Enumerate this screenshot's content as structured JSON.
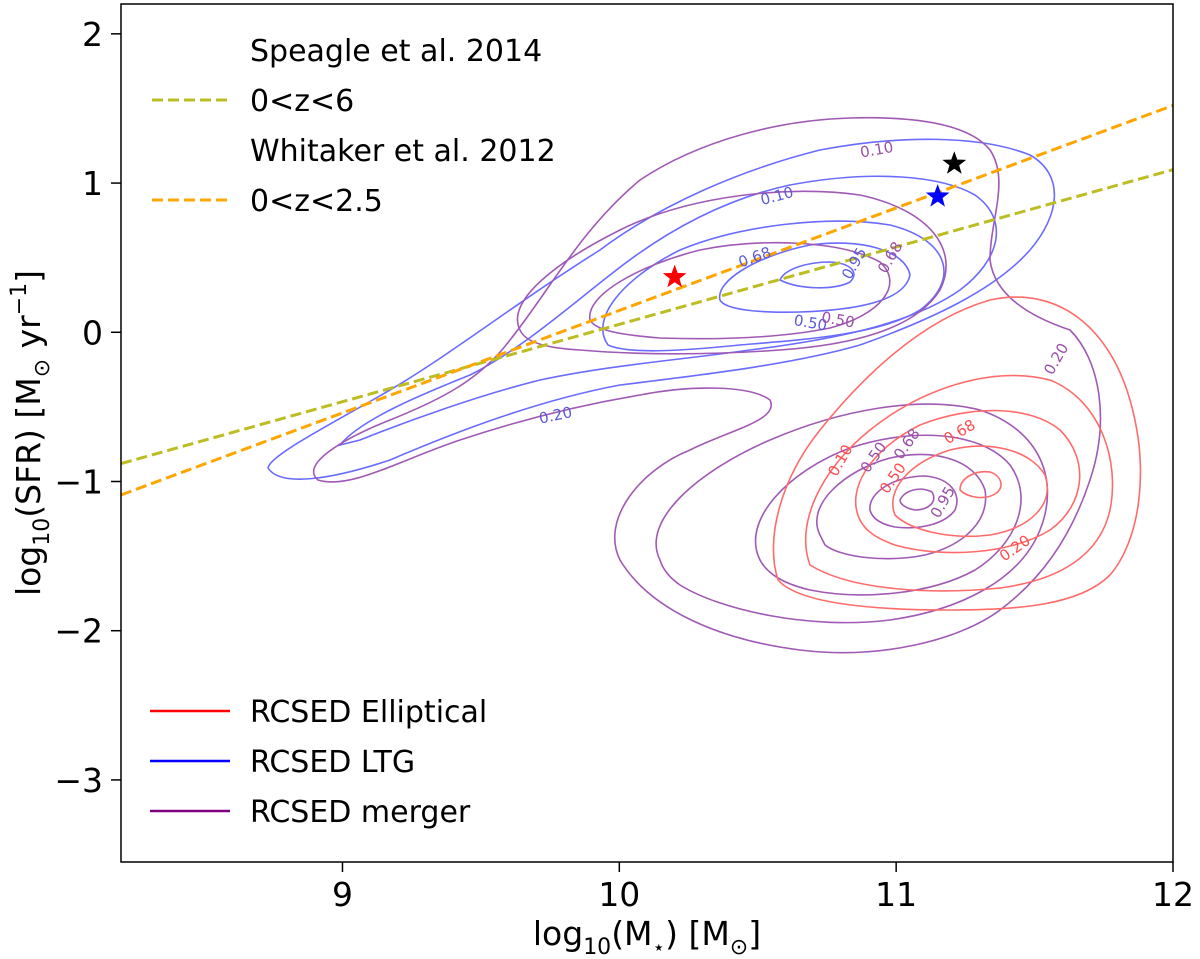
{
  "chart_data": {
    "type": "contour",
    "xlabel_main": "log",
    "xlabel_sub": "10",
    "xlabel_rest": "(M",
    "xlabel_star": "⋆",
    "xlabel_close": ") [M",
    "xlabel_sun": "⊙",
    "xlabel_end": "]",
    "ylabel_main": "log",
    "ylabel_sub": "10",
    "ylabel_rest": "(SFR) [M",
    "ylabel_sun": "⊙",
    "ylabel_unit": " yr",
    "ylabel_exp": "−1",
    "ylabel_end": "]",
    "xlim": [
      8.2,
      12.0
    ],
    "ylim": [
      -3.55,
      2.2
    ],
    "xticks": [
      {
        "value": 9,
        "label": "9"
      },
      {
        "value": 10,
        "label": "10"
      },
      {
        "value": 11,
        "label": "11"
      },
      {
        "value": 12,
        "label": "12"
      }
    ],
    "yticks": [
      {
        "value": 2,
        "label": "2"
      },
      {
        "value": 1,
        "label": "1"
      },
      {
        "value": 0,
        "label": "0"
      },
      {
        "value": -1,
        "label": "−1"
      },
      {
        "value": -2,
        "label": "−2"
      },
      {
        "value": -3,
        "label": "−3"
      }
    ],
    "lines": [
      {
        "name": "0<z<6",
        "color": "#bcbd22",
        "x": [
          8.2,
          12.0
        ],
        "y": [
          -0.88,
          1.09
        ],
        "style": "dashed"
      },
      {
        "name": "0<z<2.5",
        "color": "#ffa500",
        "x": [
          8.2,
          12.0
        ],
        "y": [
          -1.09,
          1.52
        ],
        "style": "dashed"
      }
    ],
    "stars": [
      {
        "name": "red-star",
        "color": "#ff0000",
        "x": 10.2,
        "y": 0.37
      },
      {
        "name": "blue-star",
        "color": "#0000ff",
        "x": 11.15,
        "y": 0.91
      },
      {
        "name": "black-star",
        "color": "#000000",
        "x": 11.21,
        "y": 1.13
      }
    ],
    "contour_labels": [
      {
        "text": "0.10",
        "x": 10.57,
        "y": 0.91,
        "color": "#5b5bd6",
        "angle": -15
      },
      {
        "text": "0.10",
        "x": 10.93,
        "y": 1.22,
        "color": "#9a4fa8",
        "angle": -10
      },
      {
        "text": "0.68",
        "x": 10.49,
        "y": 0.5,
        "color": "#5b5bd6",
        "angle": -20
      },
      {
        "text": "0.95",
        "x": 10.85,
        "y": 0.46,
        "color": "#5b5bd6",
        "angle": -60
      },
      {
        "text": "0.68",
        "x": 10.98,
        "y": 0.5,
        "color": "#9a4fa8",
        "angle": -60
      },
      {
        "text": "0.50",
        "x": 10.69,
        "y": 0.06,
        "color": "#5b5bd6",
        "angle": 10
      },
      {
        "text": "0.50",
        "x": 10.79,
        "y": 0.08,
        "color": "#9a4fa8",
        "angle": 10
      },
      {
        "text": "0.20",
        "x": 9.77,
        "y": -0.56,
        "color": "#5b5bd6",
        "angle": -12
      },
      {
        "text": "0.20",
        "x": 11.58,
        "y": -0.18,
        "color": "#9a4fa8",
        "angle": -60
      },
      {
        "text": "0.10",
        "x": 10.8,
        "y": -0.86,
        "color": "#ff4d4d",
        "angle": -60
      },
      {
        "text": "0.50",
        "x": 10.92,
        "y": -0.84,
        "color": "#9a4fa8",
        "angle": -55
      },
      {
        "text": "0.68",
        "x": 11.04,
        "y": -0.75,
        "color": "#9a4fa8",
        "angle": -55
      },
      {
        "text": "0.68",
        "x": 11.23,
        "y": -0.67,
        "color": "#ff4d4d",
        "angle": -30
      },
      {
        "text": "0.50",
        "x": 10.99,
        "y": -0.98,
        "color": "#ff4d4d",
        "angle": -55
      },
      {
        "text": "0.95",
        "x": 11.17,
        "y": -1.14,
        "color": "#9a4fa8",
        "angle": -60
      },
      {
        "text": "0.20",
        "x": 11.43,
        "y": -1.45,
        "color": "#ff4d4d",
        "angle": -35
      }
    ],
    "legend_top": [
      {
        "label": "Speagle et al. 2014",
        "marker": "none"
      },
      {
        "label": "0<z<6",
        "marker": "dash",
        "color": "#bcbd22"
      },
      {
        "label": "Whitaker et al. 2012",
        "marker": "none"
      },
      {
        "label": "0<z<2.5",
        "marker": "dash",
        "color": "#ffa500"
      }
    ],
    "legend_bottom": [
      {
        "label": "RCSED Elliptical",
        "color": "#ff0000"
      },
      {
        "label": "RCSED LTG",
        "color": "#0000ff"
      },
      {
        "label": "RCSED merger",
        "color": "#800080"
      }
    ]
  }
}
